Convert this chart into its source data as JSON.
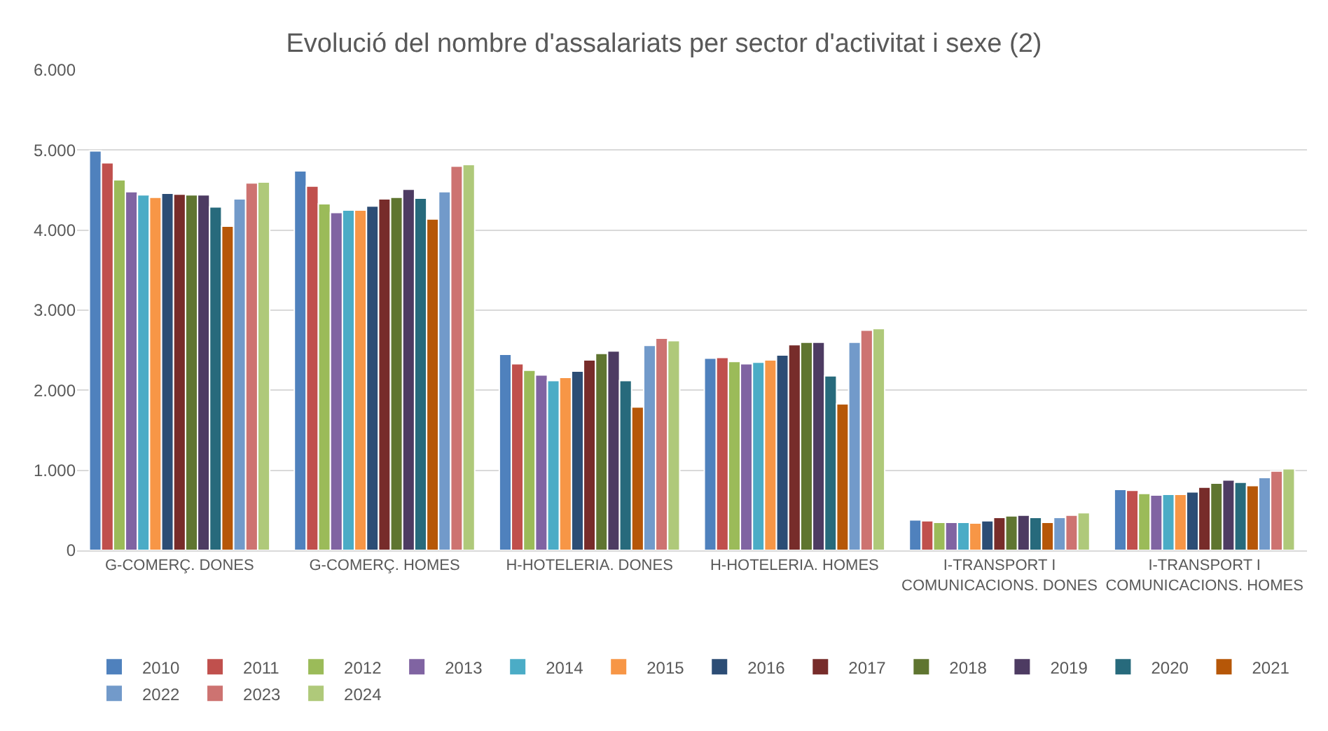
{
  "chart_data": {
    "type": "bar",
    "title": "Evolució del nombre d'assalariats per sector d'activitat i sexe (2)",
    "categories": [
      "G-COMERÇ. DONES",
      "G-COMERÇ. HOMES",
      "H-HOTELERIA. DONES",
      "H-HOTELERIA. HOMES",
      "I-TRANSPORT I COMUNICACIONS. DONES",
      "I-TRANSPORT I COMUNICACIONS. HOMES"
    ],
    "series": [
      {
        "name": "2010",
        "color": "#4f81bd",
        "values": [
          4990,
          4740,
          2450,
          2400,
          380,
          760
        ]
      },
      {
        "name": "2011",
        "color": "#c0504d",
        "values": [
          4840,
          4550,
          2330,
          2410,
          370,
          750
        ]
      },
      {
        "name": "2012",
        "color": "#9bbb59",
        "values": [
          4630,
          4330,
          2250,
          2360,
          350,
          710
        ]
      },
      {
        "name": "2013",
        "color": "#8064a2",
        "values": [
          4480,
          4220,
          2190,
          2330,
          350,
          690
        ]
      },
      {
        "name": "2014",
        "color": "#4bacc6",
        "values": [
          4440,
          4250,
          2120,
          2350,
          350,
          700
        ]
      },
      {
        "name": "2015",
        "color": "#f79646",
        "values": [
          4410,
          4250,
          2160,
          2380,
          340,
          700
        ]
      },
      {
        "name": "2016",
        "color": "#2c4d75",
        "values": [
          4460,
          4300,
          2240,
          2440,
          370,
          730
        ]
      },
      {
        "name": "2017",
        "color": "#772c2a",
        "values": [
          4450,
          4390,
          2380,
          2570,
          410,
          790
        ]
      },
      {
        "name": "2018",
        "color": "#5f7530",
        "values": [
          4440,
          4410,
          2460,
          2600,
          430,
          840
        ]
      },
      {
        "name": "2019",
        "color": "#4d3b62",
        "values": [
          4440,
          4510,
          2490,
          2600,
          440,
          880
        ]
      },
      {
        "name": "2020",
        "color": "#276a7c",
        "values": [
          4290,
          4400,
          2120,
          2180,
          410,
          850
        ]
      },
      {
        "name": "2021",
        "color": "#b65708",
        "values": [
          4050,
          4140,
          1790,
          1830,
          350,
          810
        ]
      },
      {
        "name": "2022",
        "color": "#729aca",
        "values": [
          4390,
          4480,
          2560,
          2600,
          410,
          910
        ]
      },
      {
        "name": "2023",
        "color": "#cd7371",
        "values": [
          4590,
          4800,
          2650,
          2750,
          440,
          990
        ]
      },
      {
        "name": "2024",
        "color": "#afc97a",
        "values": [
          4600,
          4820,
          2620,
          2770,
          470,
          1020
        ]
      }
    ],
    "ylim": [
      0,
      6000
    ],
    "yticks": [
      0,
      {
        "value": 1000,
        "label": "1.000"
      },
      {
        "value": 2000,
        "label": "2.000"
      },
      {
        "value": 3000,
        "label": "3.000"
      },
      {
        "value": 4000,
        "label": "4.000"
      },
      {
        "value": 5000,
        "label": "5.000"
      },
      {
        "value": 6000,
        "label": "6.000"
      }
    ],
    "grid": "y",
    "legend": "bottom"
  }
}
